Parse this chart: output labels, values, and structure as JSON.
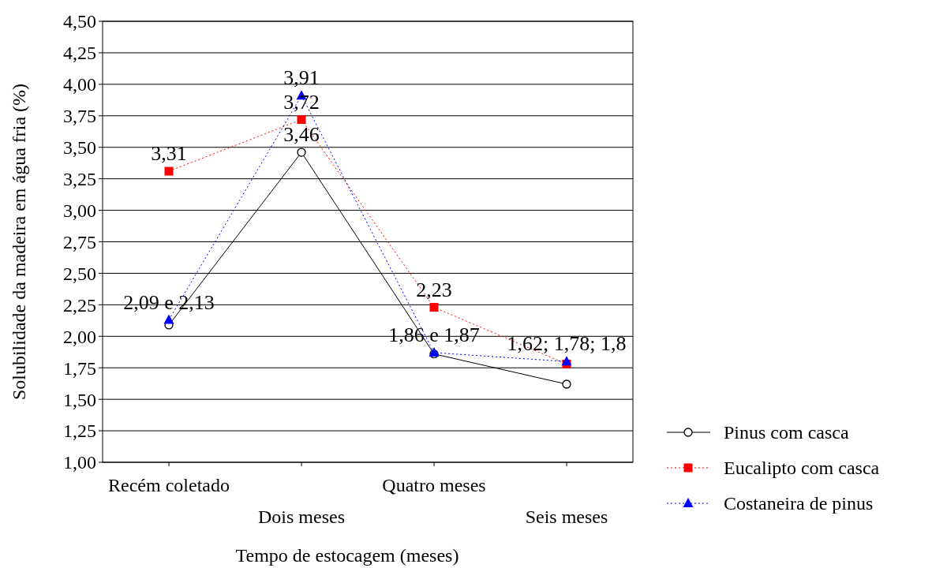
{
  "chart_data": {
    "type": "line",
    "xlabel": "Tempo de estocagem (meses)",
    "ylabel": "Solubilidade da madeira em água fria (%)",
    "categories": [
      "Recém coletado",
      "Dois meses",
      "Quatro meses",
      "Seis meses"
    ],
    "series": [
      {
        "name": "Pinus com casca",
        "color": "#000000",
        "values": [
          2.09,
          3.46,
          1.86,
          1.62
        ],
        "marker": "circle",
        "line_style": "solid"
      },
      {
        "name": "Eucalipto com casca",
        "color": "#ff0000",
        "values": [
          3.31,
          3.72,
          2.23,
          1.78
        ],
        "marker": "square",
        "line_style": "dotted"
      },
      {
        "name": "Costaneira de pinus",
        "color": "#0000ff",
        "values": [
          2.13,
          3.91,
          1.87,
          1.8
        ],
        "marker": "triangle",
        "line_style": "dotted"
      }
    ],
    "ylim": [
      1,
      4.5
    ],
    "yticks": [
      {
        "value": 1,
        "label": "1,00"
      },
      {
        "value": 1.25,
        "label": "1,25"
      },
      {
        "value": 1.5,
        "label": "1,50"
      },
      {
        "value": 1.75,
        "label": "1,75"
      },
      {
        "value": 2,
        "label": "2,00"
      },
      {
        "value": 2.25,
        "label": "2,25"
      },
      {
        "value": 2.5,
        "label": "2,50"
      },
      {
        "value": 2.75,
        "label": "2,75"
      },
      {
        "value": 3,
        "label": "3,00"
      },
      {
        "value": 3.25,
        "label": "3,25"
      },
      {
        "value": 3.5,
        "label": "3,50"
      },
      {
        "value": 3.75,
        "label": "3,75"
      },
      {
        "value": 4,
        "label": "4,00"
      },
      {
        "value": 4.25,
        "label": "4,25"
      },
      {
        "value": 4.5,
        "label": "4,50"
      }
    ],
    "grid": "y",
    "legend": "right",
    "annotations": [
      {
        "text": "2,09 e 2,13",
        "x": "Recém coletado",
        "y": 2.13
      },
      {
        "text": "3,31",
        "x": "Recém coletado",
        "y": 3.31
      },
      {
        "text": "3,91",
        "x": "Dois meses",
        "y": 3.91
      },
      {
        "text": "3,72",
        "x": "Dois meses",
        "y": 3.72
      },
      {
        "text": "3,46",
        "x": "Dois meses",
        "y": 3.46
      },
      {
        "text": "2,23",
        "x": "Quatro meses",
        "y": 2.23
      },
      {
        "text": "1,86 e 1,87",
        "x": "Quatro meses",
        "y": 1.87
      },
      {
        "text": "1,62; 1,78; 1,8",
        "x": "Seis meses",
        "y": 1.8
      }
    ]
  }
}
